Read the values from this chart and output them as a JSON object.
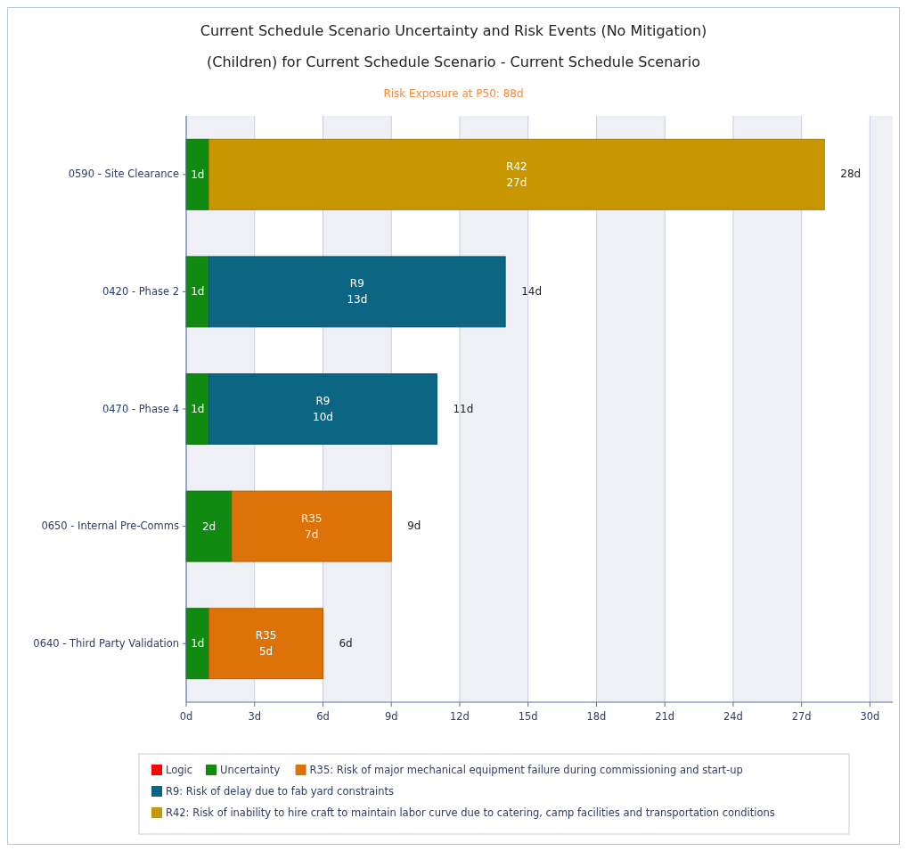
{
  "chart_data": {
    "type": "bar",
    "orientation": "horizontal",
    "stacked": true,
    "title": "Current Schedule Scenario Uncertainty and Risk Events (No Mitigation)",
    "subtitle": "(Children) for Current Schedule Scenario - Current Schedule Scenario",
    "annotations": [
      "Risk Exposure at P50: 88d"
    ],
    "categories": [
      "0590 - Site Clearance",
      "0420 - Phase 2",
      "0470 - Phase 4",
      "0650 - Internal Pre-Comms",
      "0640 - Third Party Validation"
    ],
    "series": [
      {
        "name": "Logic",
        "color": "#ff0000",
        "values": [
          null,
          null,
          null,
          null,
          null
        ]
      },
      {
        "name": "Uncertainty",
        "color": "#108a10",
        "values": [
          1,
          1,
          1,
          2,
          1
        ],
        "value_labels": [
          "1d",
          "1d",
          "1d",
          "2d",
          "1d"
        ]
      },
      {
        "name": "R35: Risk of major mechanical equipment failure during commissioning and start-up",
        "color": "#dc7208",
        "values": [
          null,
          null,
          null,
          7,
          5
        ],
        "value_labels": [
          null,
          null,
          null,
          "R35\n7d",
          "R35\n5d"
        ]
      },
      {
        "name": "R9: Risk of delay due to fab yard constraints",
        "color": "#0c6583",
        "values": [
          null,
          13,
          10,
          null,
          null
        ],
        "value_labels": [
          null,
          "R9\n13d",
          "R9\n10d",
          null,
          null
        ]
      },
      {
        "name": "R42: Risk of inability to hire craft to maintain labor curve due to catering, camp facilities and transportation conditions",
        "color": "#c89700",
        "values": [
          27,
          null,
          null,
          null,
          null
        ],
        "value_labels": [
          "R42\n27d",
          null,
          null,
          null,
          null
        ]
      }
    ],
    "totals": [
      "28d",
      "14d",
      "11d",
      "9d",
      "6d"
    ],
    "xlim": [
      0,
      31
    ],
    "xticks": [
      {
        "value": 0,
        "label": "0d"
      },
      {
        "value": 3,
        "label": "3d"
      },
      {
        "value": 6,
        "label": "6d"
      },
      {
        "value": 9,
        "label": "9d"
      },
      {
        "value": 12,
        "label": "12d"
      },
      {
        "value": 15,
        "label": "15d"
      },
      {
        "value": 18,
        "label": "18d"
      },
      {
        "value": 21,
        "label": "21d"
      },
      {
        "value": 24,
        "label": "24d"
      },
      {
        "value": 27,
        "label": "27d"
      },
      {
        "value": 30,
        "label": "30d"
      }
    ],
    "grid": "x",
    "legend": "bottom"
  }
}
